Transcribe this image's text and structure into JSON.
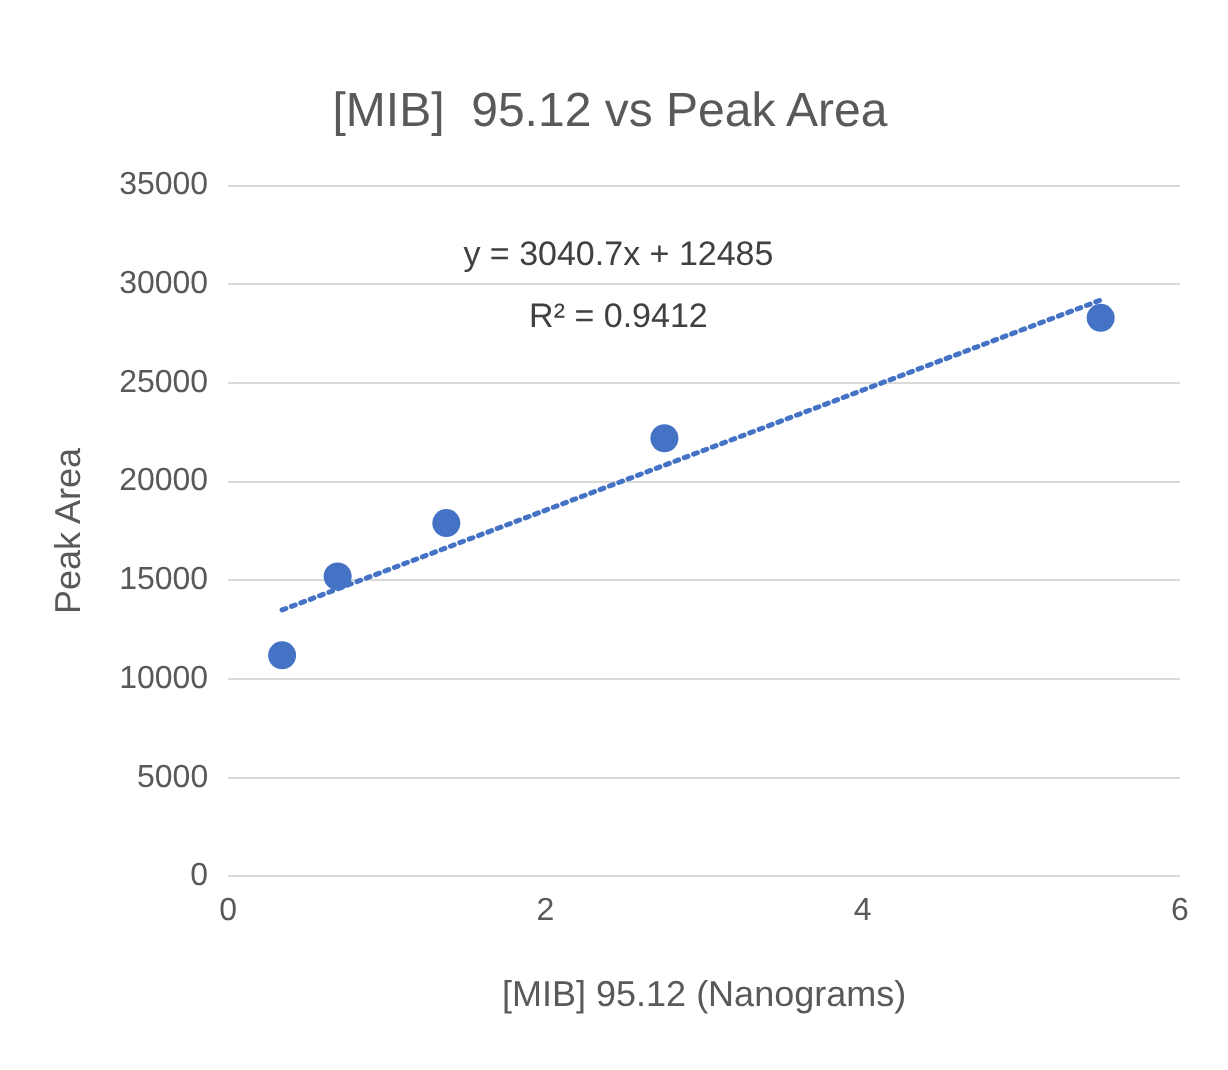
{
  "chart_data": {
    "type": "scatter",
    "title": "[MIB]  95.12 vs Peak Area",
    "xlabel": "[MIB] 95.12 (Nanograms)",
    "ylabel": "Peak Area",
    "annotations": [
      "y = 3040.7x + 12485",
      "R² = 0.9412"
    ],
    "x": [
      0.34,
      0.69,
      1.375,
      2.75,
      5.5
    ],
    "series": [
      {
        "type": "scatter",
        "color": "#4472c4",
        "values": [
          11200,
          15200,
          17900,
          22200,
          28300
        ],
        "marker": "circle"
      },
      {
        "type": "line",
        "color": "#4472c4",
        "x": [
          0.34,
          5.5
        ],
        "values": [
          13500,
          29200
        ],
        "line_style": "dotted",
        "marker": "none"
      }
    ],
    "xlim": [
      0,
      6
    ],
    "xticks": [
      0,
      2,
      4,
      6
    ],
    "ylim": [
      0,
      35000
    ],
    "yticks": [
      0,
      5000,
      10000,
      15000,
      20000,
      25000,
      30000,
      35000
    ],
    "grid": "y",
    "legend": false
  }
}
